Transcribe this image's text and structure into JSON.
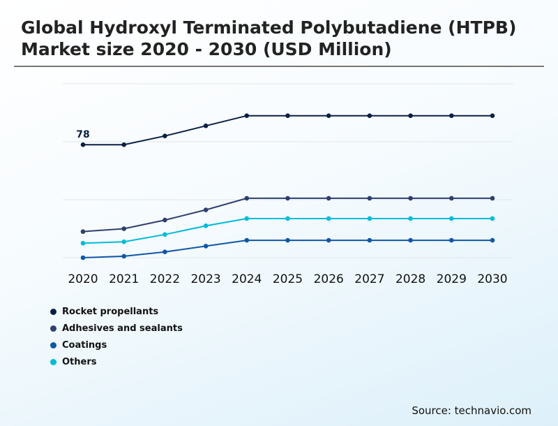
{
  "title": "Global Hydroxyl Terminated Polybutadiene (HTPB) Market size 2020 - 2030 (USD Million)",
  "source": "Source: technavio.com",
  "chart_data": {
    "type": "line",
    "title": "Global Hydroxyl Terminated Polybutadiene (HTPB) Market size 2020 - 2030 (USD Million)",
    "xlabel": "",
    "ylabel": "",
    "categories": [
      "2020",
      "2021",
      "2022",
      "2023",
      "2024",
      "2025",
      "2026",
      "2027",
      "2028",
      "2029",
      "2030"
    ],
    "ylim": [
      0,
      120
    ],
    "grid": true,
    "legend_position": "bottom-left",
    "series": [
      {
        "name": "Rocket propellants",
        "color": "#0b1f45",
        "values": [
          78,
          78,
          84,
          91,
          98,
          98,
          98,
          98,
          98,
          98,
          98
        ]
      },
      {
        "name": "Adhesives and sealants",
        "color": "#2e3f6e",
        "values": [
          18,
          20,
          26,
          33,
          41,
          41,
          41,
          41,
          41,
          41,
          41
        ]
      },
      {
        "name": "Coatings",
        "color": "#0f57a8",
        "values": [
          0,
          1,
          4,
          8,
          12,
          12,
          12,
          12,
          12,
          12,
          12
        ]
      },
      {
        "name": "Others",
        "color": "#00bcd8",
        "values": [
          10,
          11,
          16,
          22,
          27,
          27,
          27,
          27,
          27,
          27,
          27
        ]
      }
    ],
    "annotations": [
      {
        "series": 0,
        "index": 0,
        "text": "78"
      }
    ]
  }
}
